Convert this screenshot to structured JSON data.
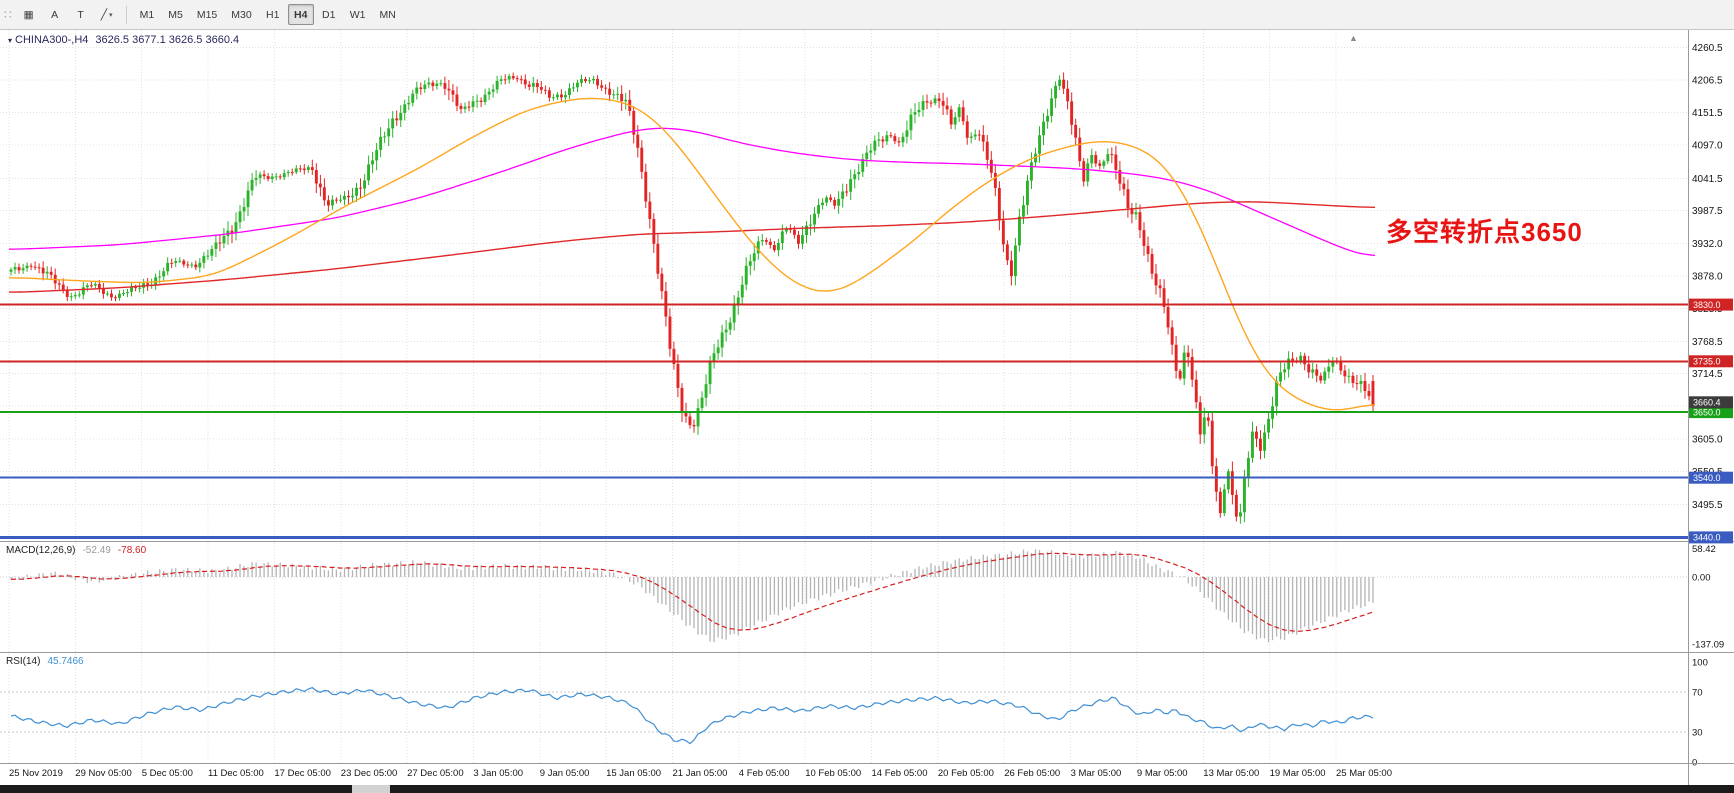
{
  "toolbar": {
    "grip_glyph": "∷",
    "buttons": [
      {
        "name": "charts-button",
        "glyph": "▦"
      },
      {
        "name": "text-a-button",
        "glyph": "A"
      },
      {
        "name": "text-t-button",
        "glyph": "T"
      },
      {
        "name": "trendline-button",
        "glyph": "╱",
        "caret": "▾"
      }
    ],
    "timeframes": [
      {
        "label": "M1",
        "active": false
      },
      {
        "label": "M5",
        "active": false
      },
      {
        "label": "M15",
        "active": false
      },
      {
        "label": "M30",
        "active": false
      },
      {
        "label": "H1",
        "active": false
      },
      {
        "label": "H4",
        "active": true
      },
      {
        "label": "D1",
        "active": false
      },
      {
        "label": "W1",
        "active": false
      },
      {
        "label": "MN",
        "active": false
      }
    ]
  },
  "chart": {
    "marker_glyph": "▾",
    "title": "CHINA300-,H4",
    "ohlc": "3626.5 3677.1 3626.5 3660.4",
    "shift_marker_glyph": "▲"
  },
  "chart_data": {
    "type": "candlestick",
    "symbol": "CHINA300-",
    "timeframe": "H4",
    "ohlc_display": {
      "open": "3626.5",
      "high": "3677.1",
      "low": "3626.5",
      "close": "3660.4"
    },
    "annotation": {
      "text": "多空转折点3650",
      "color": "#e81414"
    },
    "colors": {
      "up": "#2bb42b",
      "down": "#e32424",
      "ma_fast_orange": "#ffa51e",
      "ma_mid_red": "#e02828",
      "ma_slow_magenta": "#ff00ff",
      "grid": "#e0e0e0",
      "macd_hist": "#b4b4b4",
      "macd_signal": "#d62020",
      "rsi_line": "#3f8fd4"
    },
    "price_axis": {
      "top_price": 4290,
      "bottom_price": 3434,
      "labels": [
        "4260.5",
        "4206.5",
        "4151.5",
        "4097.0",
        "4041.5",
        "3987.5",
        "3932.0",
        "3878.0",
        "3823.5",
        "3768.5",
        "3714.5",
        "3660.0",
        "3605.0",
        "3550.5",
        "3495.5",
        "3441.0"
      ]
    },
    "time_axis": {
      "labels": [
        "25 Nov 2019",
        "29 Nov 05:00",
        "5 Dec 05:00",
        "11 Dec 05:00",
        "17 Dec 05:00",
        "23 Dec 05:00",
        "27 Dec 05:00",
        "3 Jan 05:00",
        "9 Jan 05:00",
        "15 Jan 05:00",
        "21 Jan 05:00",
        "4 Feb 05:00",
        "10 Feb 05:00",
        "14 Feb 05:00",
        "20 Feb 05:00",
        "26 Feb 05:00",
        "3 Mar 05:00",
        "9 Mar 05:00",
        "13 Mar 05:00",
        "19 Mar 05:00",
        "25 Mar 05:00"
      ]
    },
    "horizontal_lines": [
      {
        "price": 3830,
        "label": "3830.0",
        "color": "#d02424",
        "width": 2
      },
      {
        "price": 3735,
        "label": "3735.0",
        "color": "#d02424",
        "width": 2
      },
      {
        "price": 3650,
        "label": "3650.0",
        "color": "#18a018",
        "width": 2
      },
      {
        "price": 3540,
        "label": "3540.0",
        "color": "#3a5bc0",
        "width": 2
      },
      {
        "price": 3440,
        "label": "3440.0",
        "color": "#3a5bc0",
        "width": 3
      }
    ],
    "current_price": {
      "value": 3660.4,
      "label": "3660.4",
      "tag_bg": "#3c3c3c"
    },
    "candles_count": 340,
    "price_path": [
      [
        0.0,
        3885
      ],
      [
        0.015,
        3900
      ],
      [
        0.03,
        3870
      ],
      [
        0.045,
        3845
      ],
      [
        0.06,
        3862
      ],
      [
        0.075,
        3845
      ],
      [
        0.09,
        3852
      ],
      [
        0.105,
        3875
      ],
      [
        0.12,
        3900
      ],
      [
        0.135,
        3898
      ],
      [
        0.15,
        3920
      ],
      [
        0.165,
        3975
      ],
      [
        0.18,
        4040
      ],
      [
        0.195,
        4048
      ],
      [
        0.21,
        4052
      ],
      [
        0.222,
        4062
      ],
      [
        0.232,
        3998
      ],
      [
        0.245,
        4005
      ],
      [
        0.258,
        4040
      ],
      [
        0.27,
        4088
      ],
      [
        0.282,
        4150
      ],
      [
        0.295,
        4180
      ],
      [
        0.308,
        4200
      ],
      [
        0.318,
        4205
      ],
      [
        0.33,
        4150
      ],
      [
        0.342,
        4175
      ],
      [
        0.352,
        4190
      ],
      [
        0.362,
        4205
      ],
      [
        0.372,
        4212
      ],
      [
        0.385,
        4195
      ],
      [
        0.395,
        4175
      ],
      [
        0.405,
        4185
      ],
      [
        0.415,
        4200
      ],
      [
        0.428,
        4205
      ],
      [
        0.44,
        4190
      ],
      [
        0.452,
        4160
      ],
      [
        0.46,
        4095
      ],
      [
        0.468,
        3995
      ],
      [
        0.476,
        3870
      ],
      [
        0.484,
        3750
      ],
      [
        0.492,
        3665
      ],
      [
        0.5,
        3625
      ],
      [
        0.508,
        3672
      ],
      [
        0.515,
        3735
      ],
      [
        0.523,
        3788
      ],
      [
        0.532,
        3835
      ],
      [
        0.542,
        3892
      ],
      [
        0.552,
        3945
      ],
      [
        0.56,
        3925
      ],
      [
        0.57,
        3958
      ],
      [
        0.578,
        3932
      ],
      [
        0.588,
        3985
      ],
      [
        0.598,
        4008
      ],
      [
        0.606,
        3992
      ],
      [
        0.616,
        4045
      ],
      [
        0.626,
        4072
      ],
      [
        0.636,
        4098
      ],
      [
        0.645,
        4118
      ],
      [
        0.652,
        4102
      ],
      [
        0.662,
        4138
      ],
      [
        0.672,
        4172
      ],
      [
        0.683,
        4180
      ],
      [
        0.69,
        4128
      ],
      [
        0.697,
        4155
      ],
      [
        0.703,
        4105
      ],
      [
        0.71,
        4130
      ],
      [
        0.716,
        4085
      ],
      [
        0.722,
        4020
      ],
      [
        0.729,
        3920
      ],
      [
        0.734,
        3882
      ],
      [
        0.74,
        3978
      ],
      [
        0.747,
        4042
      ],
      [
        0.755,
        4100
      ],
      [
        0.762,
        4160
      ],
      [
        0.769,
        4220
      ],
      [
        0.775,
        4180
      ],
      [
        0.781,
        4105
      ],
      [
        0.787,
        4030
      ],
      [
        0.793,
        4085
      ],
      [
        0.8,
        4062
      ],
      [
        0.806,
        4090
      ],
      [
        0.813,
        4035
      ],
      [
        0.82,
        3990
      ],
      [
        0.827,
        3985
      ],
      [
        0.833,
        3930
      ],
      [
        0.84,
        3862
      ],
      [
        0.846,
        3828
      ],
      [
        0.852,
        3762
      ],
      [
        0.858,
        3705
      ],
      [
        0.863,
        3775
      ],
      [
        0.868,
        3692
      ],
      [
        0.873,
        3608
      ],
      [
        0.878,
        3645
      ],
      [
        0.883,
        3545
      ],
      [
        0.888,
        3482
      ],
      [
        0.893,
        3565
      ],
      [
        0.898,
        3490
      ],
      [
        0.902,
        3458
      ],
      [
        0.907,
        3552
      ],
      [
        0.912,
        3618
      ],
      [
        0.917,
        3595
      ],
      [
        0.923,
        3642
      ],
      [
        0.93,
        3700
      ],
      [
        0.938,
        3728
      ],
      [
        0.947,
        3745
      ],
      [
        0.955,
        3722
      ],
      [
        0.963,
        3698
      ],
      [
        0.971,
        3738
      ],
      [
        0.98,
        3718
      ],
      [
        0.99,
        3695
      ],
      [
        1.0,
        3660
      ]
    ],
    "ma_magenta": [
      [
        0,
        3922
      ],
      [
        0.08,
        3930
      ],
      [
        0.16,
        3948
      ],
      [
        0.24,
        3975
      ],
      [
        0.3,
        4008
      ],
      [
        0.36,
        4052
      ],
      [
        0.41,
        4092
      ],
      [
        0.45,
        4118
      ],
      [
        0.475,
        4128
      ],
      [
        0.5,
        4122
      ],
      [
        0.54,
        4098
      ],
      [
        0.58,
        4082
      ],
      [
        0.62,
        4072
      ],
      [
        0.66,
        4068
      ],
      [
        0.7,
        4066
      ],
      [
        0.74,
        4062
      ],
      [
        0.78,
        4058
      ],
      [
        0.82,
        4050
      ],
      [
        0.85,
        4040
      ],
      [
        0.88,
        4020
      ],
      [
        0.91,
        3990
      ],
      [
        0.94,
        3960
      ],
      [
        0.97,
        3930
      ],
      [
        1.0,
        3905
      ]
    ],
    "ma_red": [
      [
        0,
        3850
      ],
      [
        0.08,
        3858
      ],
      [
        0.16,
        3872
      ],
      [
        0.24,
        3890
      ],
      [
        0.32,
        3912
      ],
      [
        0.4,
        3935
      ],
      [
        0.46,
        3948
      ],
      [
        0.52,
        3952
      ],
      [
        0.58,
        3958
      ],
      [
        0.64,
        3962
      ],
      [
        0.7,
        3968
      ],
      [
        0.76,
        3978
      ],
      [
        0.82,
        3990
      ],
      [
        0.87,
        4000
      ],
      [
        0.91,
        4003
      ],
      [
        0.95,
        3998
      ],
      [
        1.0,
        3992
      ]
    ],
    "ma_orange": [
      [
        0,
        3876
      ],
      [
        0.05,
        3870
      ],
      [
        0.1,
        3866
      ],
      [
        0.15,
        3878
      ],
      [
        0.2,
        3935
      ],
      [
        0.25,
        4000
      ],
      [
        0.3,
        4058
      ],
      [
        0.34,
        4112
      ],
      [
        0.38,
        4158
      ],
      [
        0.42,
        4178
      ],
      [
        0.45,
        4172
      ],
      [
        0.47,
        4148
      ],
      [
        0.49,
        4098
      ],
      [
        0.51,
        4035
      ],
      [
        0.53,
        3972
      ],
      [
        0.55,
        3915
      ],
      [
        0.57,
        3872
      ],
      [
        0.59,
        3848
      ],
      [
        0.61,
        3852
      ],
      [
        0.63,
        3882
      ],
      [
        0.66,
        3932
      ],
      [
        0.69,
        3992
      ],
      [
        0.72,
        4042
      ],
      [
        0.75,
        4078
      ],
      [
        0.78,
        4098
      ],
      [
        0.8,
        4106
      ],
      [
        0.82,
        4100
      ],
      [
        0.84,
        4080
      ],
      [
        0.855,
        4040
      ],
      [
        0.87,
        3975
      ],
      [
        0.885,
        3890
      ],
      [
        0.9,
        3800
      ],
      [
        0.915,
        3730
      ],
      [
        0.93,
        3688
      ],
      [
        0.945,
        3668
      ],
      [
        0.96,
        3655
      ],
      [
        0.975,
        3648
      ],
      [
        0.99,
        3660
      ],
      [
        1.0,
        3672
      ]
    ],
    "macd": {
      "label": "MACD(12,26,9)",
      "value": "-52.49",
      "signal": "-78.60",
      "axis": [
        "58.42",
        "0.00",
        "-137.09"
      ],
      "path": [
        [
          0,
          -5
        ],
        [
          0.03,
          8
        ],
        [
          0.06,
          -10
        ],
        [
          0.09,
          5
        ],
        [
          0.12,
          15
        ],
        [
          0.15,
          12
        ],
        [
          0.18,
          28
        ],
        [
          0.21,
          22
        ],
        [
          0.24,
          15
        ],
        [
          0.27,
          25
        ],
        [
          0.3,
          30
        ],
        [
          0.33,
          18
        ],
        [
          0.36,
          22
        ],
        [
          0.39,
          20
        ],
        [
          0.42,
          15
        ],
        [
          0.44,
          8
        ],
        [
          0.46,
          -15
        ],
        [
          0.48,
          -60
        ],
        [
          0.5,
          -105
        ],
        [
          0.515,
          -132
        ],
        [
          0.53,
          -120
        ],
        [
          0.55,
          -92
        ],
        [
          0.57,
          -65
        ],
        [
          0.59,
          -45
        ],
        [
          0.61,
          -28
        ],
        [
          0.63,
          -12
        ],
        [
          0.65,
          5
        ],
        [
          0.67,
          20
        ],
        [
          0.69,
          32
        ],
        [
          0.71,
          40
        ],
        [
          0.73,
          46
        ],
        [
          0.75,
          54
        ],
        [
          0.765,
          50
        ],
        [
          0.78,
          42
        ],
        [
          0.8,
          45
        ],
        [
          0.815,
          50
        ],
        [
          0.83,
          38
        ],
        [
          0.84,
          22
        ],
        [
          0.86,
          0
        ],
        [
          0.875,
          -35
        ],
        [
          0.89,
          -75
        ],
        [
          0.905,
          -110
        ],
        [
          0.92,
          -130
        ],
        [
          0.935,
          -125
        ],
        [
          0.95,
          -105
        ],
        [
          0.965,
          -88
        ],
        [
          0.98,
          -70
        ],
        [
          1.0,
          -52.5
        ]
      ]
    },
    "rsi": {
      "label": "RSI(14)",
      "value": "45.7466",
      "axis": [
        "100",
        "70",
        "30",
        "0"
      ],
      "levels": [
        70,
        30
      ],
      "path": [
        [
          0,
          46
        ],
        [
          0.02,
          40
        ],
        [
          0.04,
          36
        ],
        [
          0.06,
          42
        ],
        [
          0.08,
          38
        ],
        [
          0.1,
          48
        ],
        [
          0.12,
          55
        ],
        [
          0.14,
          52
        ],
        [
          0.16,
          60
        ],
        [
          0.18,
          66
        ],
        [
          0.2,
          70
        ],
        [
          0.22,
          73
        ],
        [
          0.24,
          68
        ],
        [
          0.26,
          72
        ],
        [
          0.28,
          65
        ],
        [
          0.3,
          58
        ],
        [
          0.32,
          54
        ],
        [
          0.34,
          64
        ],
        [
          0.36,
          70
        ],
        [
          0.38,
          72
        ],
        [
          0.4,
          64
        ],
        [
          0.42,
          68
        ],
        [
          0.44,
          64
        ],
        [
          0.455,
          58
        ],
        [
          0.465,
          45
        ],
        [
          0.475,
          32
        ],
        [
          0.487,
          22
        ],
        [
          0.5,
          20
        ],
        [
          0.51,
          34
        ],
        [
          0.52,
          42
        ],
        [
          0.54,
          50
        ],
        [
          0.56,
          54
        ],
        [
          0.58,
          51
        ],
        [
          0.6,
          56
        ],
        [
          0.62,
          54
        ],
        [
          0.64,
          59
        ],
        [
          0.66,
          62
        ],
        [
          0.68,
          64
        ],
        [
          0.7,
          59
        ],
        [
          0.72,
          61
        ],
        [
          0.74,
          56
        ],
        [
          0.755,
          47
        ],
        [
          0.768,
          42
        ],
        [
          0.78,
          52
        ],
        [
          0.8,
          61
        ],
        [
          0.81,
          64
        ],
        [
          0.82,
          54
        ],
        [
          0.83,
          47
        ],
        [
          0.84,
          52
        ],
        [
          0.85,
          49
        ],
        [
          0.855,
          52
        ],
        [
          0.865,
          44
        ],
        [
          0.875,
          40
        ],
        [
          0.885,
          33
        ],
        [
          0.895,
          36
        ],
        [
          0.905,
          31
        ],
        [
          0.915,
          38
        ],
        [
          0.925,
          35
        ],
        [
          0.935,
          33
        ],
        [
          0.945,
          38
        ],
        [
          0.955,
          36
        ],
        [
          0.965,
          41
        ],
        [
          0.975,
          39
        ],
        [
          0.985,
          44
        ],
        [
          1.0,
          45.7
        ]
      ]
    }
  }
}
